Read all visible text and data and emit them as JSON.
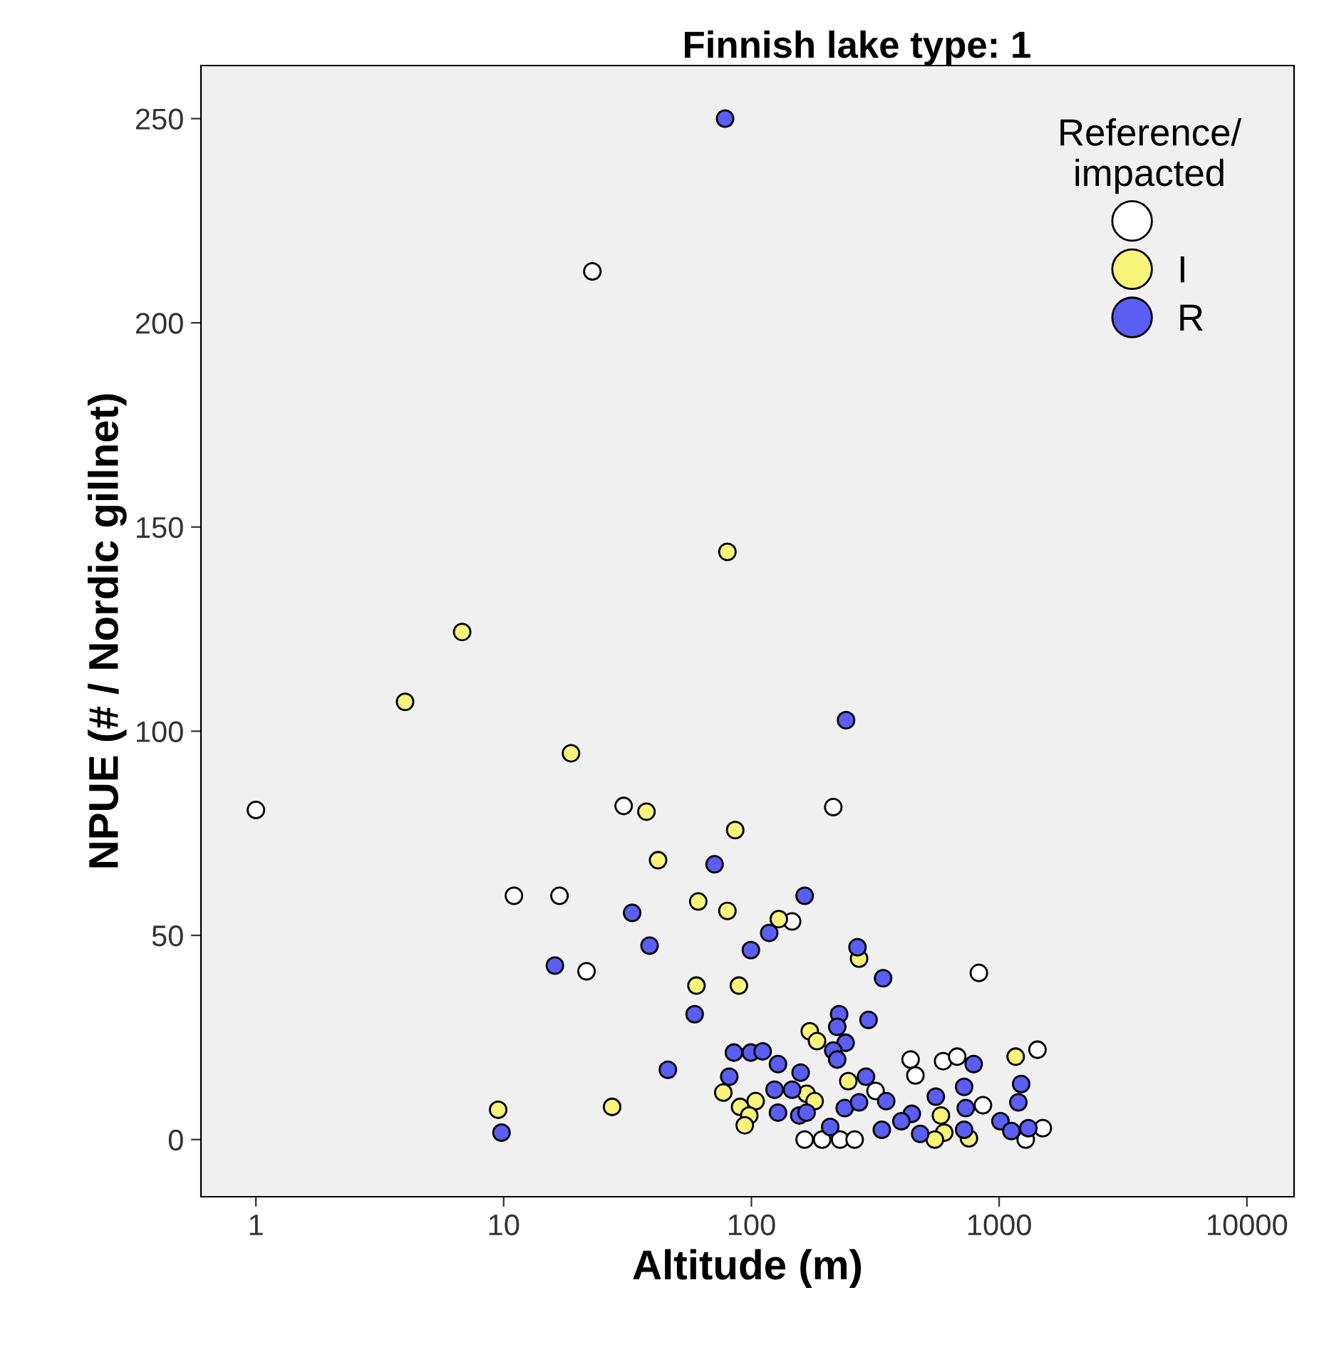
{
  "chart_data": {
    "type": "scatter",
    "title": "Finnish lake type: 1",
    "xlabel": "Altitude (m)",
    "ylabel": "NPUE (# / Nordic gillnet)",
    "legend_title": "Reference/\nimpacted",
    "legend": "top right",
    "marker": "circle",
    "grid": false,
    "log": "x",
    "xlim": [
      0.6,
      15500
    ],
    "xticks": [
      1,
      10,
      100,
      1000,
      10000
    ],
    "ylim": [
      -14,
      263
    ],
    "yticks": [
      0,
      50,
      100,
      150,
      200,
      250
    ],
    "series": [
      {
        "color": "#ffffff",
        "x": [
          1,
          22.8,
          11,
          16.8,
          21.6,
          30.5,
          214,
          146,
          828,
          439,
          459,
          594,
          677,
          1428,
          317,
          164,
          193,
          228,
          261,
          860,
          1500,
          1280
        ],
        "values": [
          80.7,
          212.6,
          59.7,
          59.7,
          41.2,
          81.7,
          81.4,
          53.4,
          40.8,
          19.6,
          15.7,
          19.2,
          20.3,
          22.0,
          11.9,
          0,
          0,
          0,
          0,
          8.4,
          2.8,
          0
        ]
      },
      {
        "name": "I",
        "color": "#f8f47a",
        "x": [
          80,
          80,
          6.8,
          4.0,
          18.7,
          42,
          37.7,
          86,
          61,
          129,
          272,
          60,
          89,
          172,
          184,
          77,
          167,
          246,
          1166,
          90,
          104,
          98,
          94,
          180,
          582,
          600,
          550,
          755,
          9.5,
          27.4
        ],
        "values": [
          56,
          143.9,
          124.3,
          107.2,
          94.6,
          68.4,
          80.3,
          75.8,
          58.3,
          54,
          44.3,
          37.7,
          37.7,
          26.5,
          24.1,
          11.5,
          11.2,
          14.3,
          20.3,
          8.0,
          9.4,
          5.9,
          3.5,
          9.4,
          5.9,
          1.7,
          0,
          0.3,
          7.3,
          8.0
        ]
      },
      {
        "name": "R",
        "color": "#5a5ef5",
        "x": [
          78.3,
          241,
          71,
          164,
          33,
          16.1,
          38.8,
          118,
          99.5,
          268,
          340,
          59,
          226,
          297,
          222,
          240,
          214,
          222,
          46,
          85,
          99.5,
          111,
          128,
          158,
          81.4,
          124,
          146,
          290,
          789,
          128,
          156,
          167,
          208,
          238,
          272,
          350,
          336,
          444,
          480,
          555,
          722,
          733,
          722,
          1012,
          1227,
          1195,
          1312,
          1120,
          403,
          9.8
        ],
        "values": [
          250,
          102.7,
          67.4,
          59.7,
          55.5,
          42.6,
          47.5,
          50.6,
          46.4,
          47.1,
          39.5,
          30.7,
          30.7,
          29.3,
          27.6,
          23.7,
          21.8,
          19.6,
          17.1,
          21.3,
          21.3,
          21.6,
          18.5,
          16.4,
          15.4,
          12.2,
          12.2,
          15.4,
          18.5,
          6.6,
          5.9,
          6.6,
          3.1,
          7.7,
          9.1,
          9.4,
          2.4,
          6.3,
          1.4,
          10.5,
          12.9,
          7.7,
          2.4,
          4.5,
          13.6,
          9.1,
          2.8,
          2.1,
          4.5,
          1.7
        ]
      }
    ]
  }
}
